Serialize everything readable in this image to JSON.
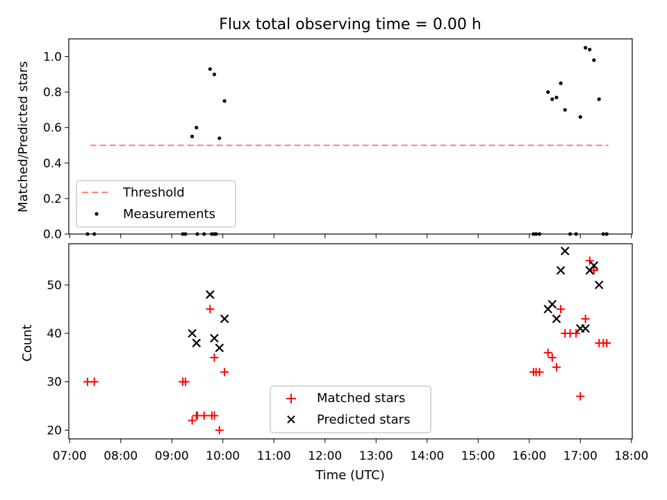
{
  "title": "Flux total observing time = 0.00 h",
  "chart_data": [
    {
      "type": "scatter",
      "ylabel": "Matched/Predicted stars",
      "ylim": [
        0,
        1.1
      ],
      "yticks": [
        0.0,
        0.2,
        0.4,
        0.6,
        0.8,
        1.0
      ],
      "ytick_labels": [
        "0.0",
        "0.2",
        "0.4",
        "0.6",
        "0.8",
        "1.0"
      ],
      "xlim": [
        "06:59",
        "18:01"
      ],
      "threshold": {
        "value": 0.5,
        "x_start": "07:24",
        "x_end": "17:33",
        "color": "#ff7f7f",
        "style": "dashed"
      },
      "series": [
        {
          "name": "Measurements",
          "color": "#000000",
          "marker": "dot",
          "points": [
            [
              "07:21",
              0
            ],
            [
              "07:29",
              0
            ],
            [
              "09:13",
              0
            ],
            [
              "09:16",
              0
            ],
            [
              "09:24",
              0.55
            ],
            [
              "09:29",
              0.6
            ],
            [
              "09:30",
              0
            ],
            [
              "09:38",
              0
            ],
            [
              "09:47",
              0
            ],
            [
              "09:50",
              0
            ],
            [
              "09:52",
              0
            ],
            [
              "09:45",
              0.93
            ],
            [
              "09:50",
              0.9
            ],
            [
              "09:56",
              0.54
            ],
            [
              "10:02",
              0.75
            ],
            [
              "16:05",
              0
            ],
            [
              "16:08",
              0
            ],
            [
              "16:12",
              0
            ],
            [
              "16:22",
              0.8
            ],
            [
              "16:27",
              0.76
            ],
            [
              "16:32",
              0.77
            ],
            [
              "16:37",
              0.85
            ],
            [
              "16:42",
              0.7
            ],
            [
              "16:48",
              0
            ],
            [
              "16:55",
              0
            ],
            [
              "17:00",
              0.66
            ],
            [
              "17:06",
              1.05
            ],
            [
              "17:11",
              1.04
            ],
            [
              "17:16",
              0.98
            ],
            [
              "17:22",
              0.76
            ],
            [
              "17:27",
              0
            ],
            [
              "17:31",
              0
            ]
          ]
        }
      ],
      "legend": {
        "position": "lower left",
        "entries": [
          "Threshold",
          "Measurements"
        ]
      }
    },
    {
      "type": "scatter",
      "xlabel": "Time (UTC)",
      "ylabel": "Count",
      "ylim": [
        18.2,
        58.5
      ],
      "yticks": [
        20,
        30,
        40,
        50
      ],
      "ytick_labels": [
        "20",
        "30",
        "40",
        "50"
      ],
      "xlim": [
        "06:59",
        "18:01"
      ],
      "xtick_labels": [
        "07:00",
        "08:00",
        "09:00",
        "10:00",
        "11:00",
        "12:00",
        "13:00",
        "14:00",
        "15:00",
        "16:00",
        "17:00",
        "18:00"
      ],
      "series": [
        {
          "name": "Matched stars",
          "color": "#ff0000",
          "marker": "plus",
          "points": [
            [
              "07:21",
              30
            ],
            [
              "07:29",
              30
            ],
            [
              "09:13",
              30
            ],
            [
              "09:16",
              30
            ],
            [
              "09:24",
              22
            ],
            [
              "09:29",
              23
            ],
            [
              "09:30",
              23
            ],
            [
              "09:38",
              23
            ],
            [
              "09:47",
              23
            ],
            [
              "09:50",
              23
            ],
            [
              "09:45",
              45
            ],
            [
              "09:50",
              35
            ],
            [
              "09:56",
              20
            ],
            [
              "10:02",
              32
            ],
            [
              "16:05",
              32
            ],
            [
              "16:08",
              32
            ],
            [
              "16:12",
              32
            ],
            [
              "16:22",
              36
            ],
            [
              "16:27",
              35
            ],
            [
              "16:32",
              33
            ],
            [
              "16:37",
              45
            ],
            [
              "16:42",
              40
            ],
            [
              "16:48",
              40
            ],
            [
              "16:55",
              40
            ],
            [
              "17:00",
              27
            ],
            [
              "17:06",
              43
            ],
            [
              "17:11",
              55
            ],
            [
              "17:16",
              53
            ],
            [
              "17:22",
              38
            ],
            [
              "17:27",
              38
            ],
            [
              "17:31",
              38
            ]
          ]
        },
        {
          "name": "Predicted stars",
          "color": "#000000",
          "marker": "x",
          "points": [
            [
              "09:24",
              40
            ],
            [
              "09:29",
              38
            ],
            [
              "09:45",
              48
            ],
            [
              "09:50",
              39
            ],
            [
              "09:56",
              37
            ],
            [
              "10:02",
              43
            ],
            [
              "16:22",
              45
            ],
            [
              "16:27",
              46
            ],
            [
              "16:32",
              43
            ],
            [
              "16:37",
              53
            ],
            [
              "16:42",
              57
            ],
            [
              "17:00",
              41
            ],
            [
              "17:06",
              41
            ],
            [
              "17:11",
              53
            ],
            [
              "17:16",
              54
            ],
            [
              "17:22",
              50
            ]
          ]
        }
      ],
      "legend": {
        "position": "lower center",
        "entries": [
          "Matched stars",
          "Predicted stars"
        ]
      }
    }
  ]
}
